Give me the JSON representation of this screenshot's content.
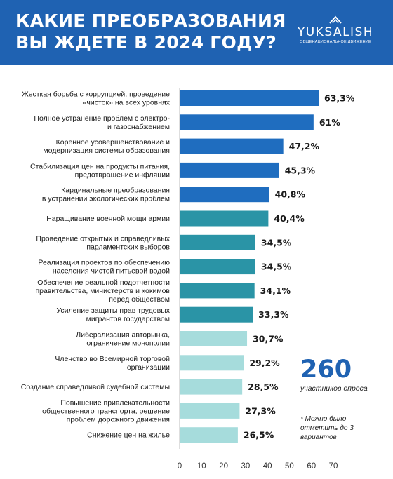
{
  "header": {
    "title_line1": "КАКИЕ ПРЕОБРАЗОВАНИЯ",
    "title_line2": "ВЫ ЖДЕТЕ В 2024 ГОДУ?",
    "logo_name": "YUKSALISH",
    "logo_sub": "Общенациональное движение"
  },
  "colors": {
    "header_bg": "#1f62b2",
    "bar_dark": "#1f6dbf",
    "bar_teal": "#2a94a6",
    "bar_light": "#a6dcdc"
  },
  "stats": {
    "respondents": "260",
    "respondents_label": "участников опроса",
    "note": "* Можно было отметить до 3 вариантов"
  },
  "chart_data": {
    "type": "bar",
    "orientation": "horizontal",
    "title": "КАКИЕ ПРЕОБРАЗОВАНИЯ ВЫ ЖДЕТЕ В 2024 ГОДУ?",
    "categories": [
      [
        "Жесткая борьба с коррупцией, проведение",
        "«чисток» на всех уровнях"
      ],
      [
        "Полное устранение проблем с электро-",
        "и газоснабжением"
      ],
      [
        "Коренное усовершенствование и",
        "модернизация системы образования"
      ],
      [
        "Стабилизация цен на продукты питания,",
        "предотвращение инфляции"
      ],
      [
        "Кардинальные преобразования",
        "в устранении экологических проблем"
      ],
      [
        "Наращивание военной мощи армии"
      ],
      [
        "Проведение открытых и справедливых",
        "парламентских выборов"
      ],
      [
        "Реализация проектов по обеспечению",
        "населения чистой питьевой водой"
      ],
      [
        "Обеспечение реальной подотчетности",
        "правительства, министерств и хокимов",
        "перед обществом"
      ],
      [
        "Усиление защиты прав трудовых",
        "мигрантов государством"
      ],
      [
        "Либерализация авторынка,",
        "ограничение монополии"
      ],
      [
        "Членство во Всемирной торговой",
        "организации"
      ],
      [
        "Создание справедливой судебной системы"
      ],
      [
        "Повышение привлекательности",
        "общественного транспорта, решение",
        "проблем дорожного движения"
      ],
      [
        "Снижение цен на жилье"
      ]
    ],
    "values": [
      63.3,
      61,
      47.2,
      45.3,
      40.8,
      40.4,
      34.5,
      34.5,
      34.1,
      33.3,
      30.7,
      29.2,
      28.5,
      27.3,
      26.5
    ],
    "value_labels": [
      "63,3%",
      "61%",
      "47,2%",
      "45,3%",
      "40,8%",
      "40,4%",
      "34,5%",
      "34,5%",
      "34,1%",
      "33,3%",
      "30,7%",
      "29,2%",
      "28,5%",
      "27,3%",
      "26,5%"
    ],
    "bar_color_groups": [
      "dark",
      "dark",
      "dark",
      "dark",
      "dark",
      "teal",
      "teal",
      "teal",
      "teal",
      "teal",
      "light",
      "light",
      "light",
      "light",
      "light"
    ],
    "x_ticks": [
      "0",
      "10",
      "20",
      "30",
      "40",
      "50",
      "60",
      "70"
    ],
    "xlim": [
      0,
      70
    ],
    "xlabel": "",
    "ylabel": "",
    "grid": false
  }
}
